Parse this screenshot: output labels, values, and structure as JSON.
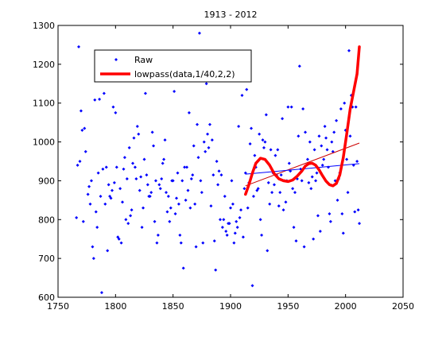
{
  "chart_data": {
    "type": "scatter",
    "title": "1913 - 2012",
    "xlabel": "",
    "ylabel": "",
    "xlim": [
      1750,
      2050
    ],
    "ylim": [
      600,
      1300
    ],
    "xticks": [
      1750,
      1800,
      1850,
      1900,
      1950,
      2000,
      2050
    ],
    "yticks": [
      600,
      700,
      800,
      900,
      1000,
      1100,
      1200,
      1300
    ],
    "grid": false,
    "legend": {
      "position": "top-left",
      "entries": [
        "Raw",
        "lowpass(data,1/40,2,2)"
      ]
    },
    "colors": {
      "raw": "#0000ff",
      "lowpass": "#ff0000",
      "trend_red": "#cc0000",
      "trend_blue": "#0000ff"
    },
    "series": [
      {
        "name": "Raw",
        "style": "points",
        "color": "#0000ff",
        "points": [
          [
            1766,
            805
          ],
          [
            1767,
            940
          ],
          [
            1768,
            1245
          ],
          [
            1769,
            950
          ],
          [
            1770,
            1080
          ],
          [
            1771,
            1030
          ],
          [
            1772,
            795
          ],
          [
            1773,
            1035
          ],
          [
            1774,
            975
          ],
          [
            1776,
            865
          ],
          [
            1777,
            885
          ],
          [
            1778,
            840
          ],
          [
            1779,
            900
          ],
          [
            1780,
            730
          ],
          [
            1781,
            700
          ],
          [
            1782,
            1108
          ],
          [
            1783,
            820
          ],
          [
            1784,
            780
          ],
          [
            1785,
            920
          ],
          [
            1786,
            1110
          ],
          [
            1787,
            860
          ],
          [
            1788,
            612
          ],
          [
            1789,
            930
          ],
          [
            1790,
            1125
          ],
          [
            1791,
            840
          ],
          [
            1792,
            935
          ],
          [
            1793,
            720
          ],
          [
            1794,
            890
          ],
          [
            1795,
            860
          ],
          [
            1796,
            855
          ],
          [
            1797,
            875
          ],
          [
            1798,
            1090
          ],
          [
            1799,
            895
          ],
          [
            1800,
            1075
          ],
          [
            1801,
            935
          ],
          [
            1802,
            755
          ],
          [
            1803,
            750
          ],
          [
            1804,
            880
          ],
          [
            1805,
            740
          ],
          [
            1806,
            845
          ],
          [
            1807,
            930
          ],
          [
            1808,
            960
          ],
          [
            1809,
            800
          ],
          [
            1810,
            905
          ],
          [
            1811,
            790
          ],
          [
            1812,
            985
          ],
          [
            1813,
            810
          ],
          [
            1814,
            825
          ],
          [
            1815,
            945
          ],
          [
            1816,
            1010
          ],
          [
            1817,
            935
          ],
          [
            1818,
            905
          ],
          [
            1819,
            1040
          ],
          [
            1820,
            1020
          ],
          [
            1821,
            875
          ],
          [
            1822,
            910
          ],
          [
            1823,
            780
          ],
          [
            1824,
            830
          ],
          [
            1825,
            955
          ],
          [
            1826,
            1125
          ],
          [
            1827,
            915
          ],
          [
            1828,
            890
          ],
          [
            1829,
            860
          ],
          [
            1830,
            860
          ],
          [
            1831,
            870
          ],
          [
            1832,
            1025
          ],
          [
            1833,
            990
          ],
          [
            1834,
            795
          ],
          [
            1835,
            900
          ],
          [
            1836,
            740
          ],
          [
            1837,
            760
          ],
          [
            1838,
            890
          ],
          [
            1839,
            880
          ],
          [
            1840,
            905
          ],
          [
            1841,
            945
          ],
          [
            1842,
            955
          ],
          [
            1843,
            1005
          ],
          [
            1844,
            870
          ],
          [
            1845,
            820
          ],
          [
            1846,
            860
          ],
          [
            1847,
            795
          ],
          [
            1848,
            830
          ],
          [
            1849,
            900
          ],
          [
            1850,
            900
          ],
          [
            1851,
            1130
          ],
          [
            1852,
            815
          ],
          [
            1853,
            855
          ],
          [
            1854,
            920
          ],
          [
            1855,
            840
          ],
          [
            1856,
            760
          ],
          [
            1857,
            740
          ],
          [
            1858,
            900
          ],
          [
            1859,
            675
          ],
          [
            1860,
            935
          ],
          [
            1861,
            850
          ],
          [
            1862,
            935
          ],
          [
            1863,
            875
          ],
          [
            1864,
            1075
          ],
          [
            1865,
            830
          ],
          [
            1866,
            905
          ],
          [
            1867,
            915
          ],
          [
            1868,
            990
          ],
          [
            1869,
            840
          ],
          [
            1870,
            730
          ],
          [
            1871,
            1045
          ],
          [
            1872,
            960
          ],
          [
            1873,
            1280
          ],
          [
            1874,
            900
          ],
          [
            1875,
            870
          ],
          [
            1876,
            740
          ],
          [
            1877,
            1000
          ],
          [
            1878,
            975
          ],
          [
            1879,
            1150
          ],
          [
            1880,
            1020
          ],
          [
            1881,
            985
          ],
          [
            1882,
            1045
          ],
          [
            1883,
            835
          ],
          [
            1884,
            1005
          ],
          [
            1885,
            915
          ],
          [
            1886,
            745
          ],
          [
            1887,
            670
          ],
          [
            1888,
            950
          ],
          [
            1889,
            890
          ],
          [
            1890,
            925
          ],
          [
            1891,
            800
          ],
          [
            1892,
            915
          ],
          [
            1893,
            780
          ],
          [
            1894,
            800
          ],
          [
            1895,
            860
          ],
          [
            1896,
            770
          ],
          [
            1897,
            760
          ],
          [
            1898,
            790
          ],
          [
            1899,
            790
          ],
          [
            1900,
            830
          ],
          [
            1901,
            900
          ],
          [
            1902,
            840
          ],
          [
            1903,
            740
          ],
          [
            1904,
            765
          ],
          [
            1905,
            795
          ],
          [
            1906,
            780
          ],
          [
            1907,
            1040
          ],
          [
            1908,
            805
          ],
          [
            1909,
            825
          ],
          [
            1910,
            1120
          ],
          [
            1911,
            755
          ],
          [
            1912,
            880
          ],
          [
            1913,
            920
          ],
          [
            1914,
            1135
          ],
          [
            1915,
            830
          ],
          [
            1916,
            895
          ],
          [
            1917,
            995
          ],
          [
            1918,
            1035
          ],
          [
            1919,
            630
          ],
          [
            1920,
            860
          ],
          [
            1921,
            965
          ],
          [
            1922,
            935
          ],
          [
            1923,
            875
          ],
          [
            1924,
            880
          ],
          [
            1925,
            1020
          ],
          [
            1926,
            800
          ],
          [
            1927,
            760
          ],
          [
            1928,
            1005
          ],
          [
            1929,
            985
          ],
          [
            1930,
            1000
          ],
          [
            1931,
            1070
          ],
          [
            1932,
            720
          ],
          [
            1933,
            895
          ],
          [
            1934,
            840
          ],
          [
            1935,
            980
          ],
          [
            1936,
            870
          ],
          [
            1937,
            920
          ],
          [
            1938,
            890
          ],
          [
            1939,
            965
          ],
          [
            1940,
            915
          ],
          [
            1941,
            980
          ],
          [
            1942,
            835
          ],
          [
            1943,
            870
          ],
          [
            1944,
            915
          ],
          [
            1945,
            1060
          ],
          [
            1946,
            825
          ],
          [
            1947,
            900
          ],
          [
            1948,
            845
          ],
          [
            1949,
            900
          ],
          [
            1950,
            1090
          ],
          [
            1951,
            945
          ],
          [
            1952,
            925
          ],
          [
            1953,
            1090
          ],
          [
            1954,
            880
          ],
          [
            1955,
            780
          ],
          [
            1956,
            870
          ],
          [
            1957,
            745
          ],
          [
            1958,
            905
          ],
          [
            1959,
            1015
          ],
          [
            1960,
            1195
          ],
          [
            1961,
            930
          ],
          [
            1962,
            900
          ],
          [
            1963,
            1085
          ],
          [
            1964,
            730
          ],
          [
            1965,
            1025
          ],
          [
            1966,
            940
          ],
          [
            1967,
            955
          ],
          [
            1968,
            895
          ],
          [
            1969,
            1000
          ],
          [
            1970,
            880
          ],
          [
            1971,
            910
          ],
          [
            1972,
            750
          ],
          [
            1973,
            980
          ],
          [
            1974,
            900
          ],
          [
            1975,
            920
          ],
          [
            1976,
            810
          ],
          [
            1977,
            1015
          ],
          [
            1978,
            770
          ],
          [
            1979,
            990
          ],
          [
            1980,
            940
          ],
          [
            1981,
            955
          ],
          [
            1982,
            1040
          ],
          [
            1983,
            1010
          ],
          [
            1984,
            980
          ],
          [
            1985,
            935
          ],
          [
            1986,
            815
          ],
          [
            1987,
            795
          ],
          [
            1988,
            1000
          ],
          [
            1989,
            975
          ],
          [
            1990,
            1025
          ],
          [
            1991,
            900
          ],
          [
            1992,
            1055
          ],
          [
            1993,
            850
          ],
          [
            1994,
            905
          ],
          [
            1995,
            920
          ],
          [
            1996,
            1085
          ],
          [
            1997,
            815
          ],
          [
            1998,
            765
          ],
          [
            1999,
            1100
          ],
          [
            2000,
            1030
          ],
          [
            2001,
            955
          ],
          [
            2002,
            870
          ],
          [
            2003,
            1235
          ],
          [
            2004,
            1015
          ],
          [
            2005,
            1120
          ],
          [
            2006,
            1090
          ],
          [
            2007,
            940
          ],
          [
            2008,
            820
          ],
          [
            2009,
            1090
          ],
          [
            2010,
            950
          ],
          [
            2011,
            825
          ],
          [
            2012,
            790
          ]
        ]
      },
      {
        "name": "lowpass(data,1/40,2,2)",
        "style": "line",
        "color": "#ff0000",
        "width": 3.5,
        "points": [
          [
            1913,
            865
          ],
          [
            1916,
            890
          ],
          [
            1919,
            920
          ],
          [
            1922,
            945
          ],
          [
            1926,
            958
          ],
          [
            1930,
            955
          ],
          [
            1934,
            940
          ],
          [
            1938,
            918
          ],
          [
            1942,
            905
          ],
          [
            1946,
            900
          ],
          [
            1950,
            898
          ],
          [
            1954,
            902
          ],
          [
            1958,
            912
          ],
          [
            1962,
            925
          ],
          [
            1965,
            938
          ],
          [
            1968,
            944
          ],
          [
            1971,
            945
          ],
          [
            1974,
            940
          ],
          [
            1977,
            928
          ],
          [
            1980,
            913
          ],
          [
            1983,
            899
          ],
          [
            1986,
            890
          ],
          [
            1989,
            887
          ],
          [
            1992,
            893
          ],
          [
            1995,
            915
          ],
          [
            1998,
            960
          ],
          [
            2001,
            1020
          ],
          [
            2004,
            1085
          ],
          [
            2007,
            1130
          ],
          [
            2010,
            1175
          ],
          [
            2012,
            1245
          ]
        ]
      },
      {
        "name": "",
        "style": "trend",
        "color": "#cc0000",
        "width": 1,
        "points": [
          [
            1913,
            887
          ],
          [
            2012,
            997
          ]
        ]
      },
      {
        "name": "",
        "style": "trend",
        "color": "#0000ff",
        "width": 1,
        "points": [
          [
            1913,
            917
          ],
          [
            2012,
            944
          ]
        ]
      }
    ]
  }
}
